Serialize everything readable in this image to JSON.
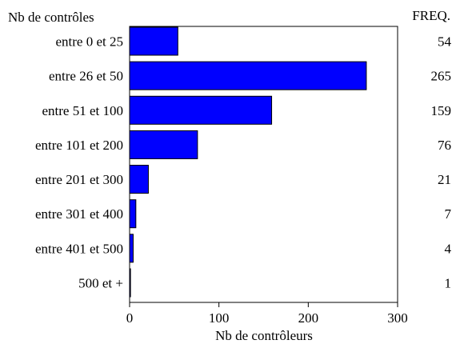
{
  "chart_data": {
    "type": "bar",
    "orientation": "horizontal",
    "categories": [
      "entre 0 et 25",
      "entre 26 et 50",
      "entre 51 et 100",
      "entre 101 et 200",
      "entre 201 et 300",
      "entre 301 et 400",
      "entre 401 et 500",
      "500 et +"
    ],
    "values": [
      54,
      265,
      159,
      76,
      21,
      7,
      4,
      1
    ],
    "freq_labels": [
      "54",
      "265",
      "159",
      "76",
      "21",
      "7",
      "4",
      "1"
    ],
    "title": "",
    "category_axis_label": "Nb de contrôles",
    "freq_header": "FREQ.",
    "xlabel": "Nb de contrôleurs",
    "xlim": [
      0,
      300
    ],
    "xticks": [
      0,
      100,
      200,
      300
    ],
    "xtick_labels": [
      "0",
      "100",
      "200",
      "300"
    ],
    "grid": false,
    "legend": "none",
    "colors": {
      "bar_fill": "#0000ff",
      "bar_stroke": "#000000",
      "axis": "#000000"
    }
  }
}
